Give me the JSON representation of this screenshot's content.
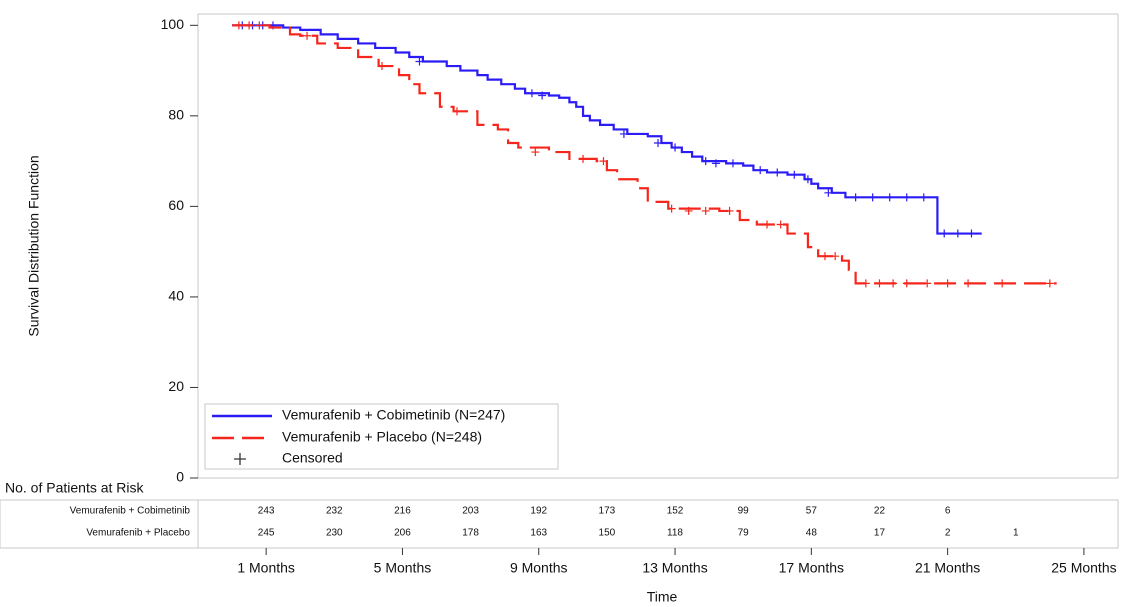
{
  "chart_data": {
    "type": "km",
    "y_label": "Survival Distribution Function",
    "x_label": "Time",
    "xlim": [
      -1,
      26
    ],
    "ylim": [
      0,
      102.5
    ],
    "xticks": [
      {
        "value": 1,
        "label": "1 Months"
      },
      {
        "value": 5,
        "label": "5 Months"
      },
      {
        "value": 9,
        "label": "9 Months"
      },
      {
        "value": 13,
        "label": "13 Months"
      },
      {
        "value": 17,
        "label": "17 Months"
      },
      {
        "value": 21,
        "label": "21 Months"
      },
      {
        "value": 25,
        "label": "25 Months"
      }
    ],
    "yticks": [
      0,
      20,
      40,
      60,
      80,
      100
    ],
    "censored_label": "Censored",
    "series": [
      {
        "name": "Vemurafenib + Cobimetinib (N=247)",
        "color": "#2b1cf5",
        "line_style": "solid",
        "x": [
          0,
          1.5,
          2.0,
          2.6,
          3.1,
          3.7,
          4.2,
          4.8,
          5.2,
          5.6,
          6.3,
          6.7,
          7.2,
          7.5,
          7.9,
          8.3,
          8.6,
          9.3,
          9.6,
          9.9,
          10.1,
          10.3,
          10.5,
          10.8,
          11.2,
          11.6,
          12.2,
          12.6,
          12.9,
          13.2,
          13.5,
          13.8,
          14.5,
          15.0,
          15.3,
          15.7,
          16.3,
          16.8,
          17.0,
          17.2,
          17.6,
          18.0,
          20.7,
          20.7,
          22.0
        ],
        "values": [
          100,
          99.5,
          99,
          98,
          97,
          96,
          95,
          94,
          93,
          92,
          91,
          90,
          89,
          88,
          87,
          86,
          85,
          84.5,
          84,
          83,
          82,
          80,
          79,
          78,
          77,
          76,
          75.5,
          74,
          73,
          72,
          71,
          70,
          69.5,
          69,
          68,
          67.5,
          67,
          66,
          65,
          64,
          63,
          62,
          62,
          54,
          54
        ],
        "censored_x": [
          0.3,
          0.6,
          0.9,
          1.2,
          5.5,
          8.8,
          9.1,
          11.5,
          12.5,
          13.0,
          13.9,
          14.2,
          14.7,
          15.5,
          16.0,
          16.5,
          16.9,
          17.5,
          18.3,
          18.8,
          19.3,
          19.8,
          20.3,
          20.9,
          21.3,
          21.7
        ],
        "censored_values": [
          100,
          100,
          100,
          100,
          92,
          85,
          84.5,
          76,
          74,
          73,
          70,
          69.5,
          69.5,
          68,
          67.5,
          67,
          66,
          63,
          62,
          62,
          62,
          62,
          62,
          54,
          54,
          54
        ]
      },
      {
        "name": "Vemurafenib + Placebo (N=248)",
        "color": "#f5271c",
        "line_style": "dashed",
        "x": [
          0,
          1.1,
          1.7,
          2.0,
          2.5,
          3.1,
          3.7,
          4.3,
          4.9,
          5.2,
          5.5,
          6.1,
          6.5,
          7.2,
          7.8,
          8.1,
          8.4,
          9.3,
          9.9,
          10.7,
          11.0,
          11.3,
          11.9,
          12.2,
          12.8,
          14.3,
          14.9,
          15.4,
          16.3,
          16.9,
          17.2,
          17.9,
          18.1,
          18.3,
          24.2
        ],
        "values": [
          100,
          99.5,
          98,
          97.7,
          96,
          95,
          93,
          91,
          89,
          87,
          85,
          82,
          81,
          78,
          77,
          74,
          73,
          72,
          70.5,
          70,
          68,
          66,
          64,
          61,
          59.5,
          59,
          57,
          56,
          54,
          51,
          49,
          48,
          46,
          43,
          43
        ],
        "censored_x": [
          0.2,
          0.5,
          0.8,
          2.2,
          4.4,
          6.6,
          8.9,
          10.3,
          10.9,
          12.9,
          13.4,
          13.9,
          14.6,
          15.7,
          16.1,
          17.4,
          17.7,
          18.6,
          19.0,
          19.4,
          19.8,
          20.4,
          21.0,
          21.6,
          22.6,
          24.0
        ],
        "censored_values": [
          100,
          100,
          100,
          97.7,
          91,
          81,
          72,
          70.5,
          70,
          59.5,
          59,
          59,
          59,
          56,
          56,
          49,
          49,
          43,
          43,
          43,
          43,
          43,
          43,
          43,
          43,
          43
        ]
      }
    ],
    "risk_table": {
      "title": "No. of Patients at Risk",
      "x": [
        1,
        3,
        5,
        7,
        9,
        11,
        13,
        15,
        17,
        19,
        21,
        23
      ],
      "rows": [
        {
          "label": "Vemurafenib + Cobimetinib",
          "values": [
            243,
            232,
            216,
            203,
            192,
            173,
            152,
            99,
            57,
            22,
            6,
            null
          ]
        },
        {
          "label": "Vemurafenib + Placebo",
          "values": [
            245,
            230,
            206,
            178,
            163,
            150,
            118,
            79,
            48,
            17,
            2,
            1
          ]
        }
      ]
    }
  }
}
